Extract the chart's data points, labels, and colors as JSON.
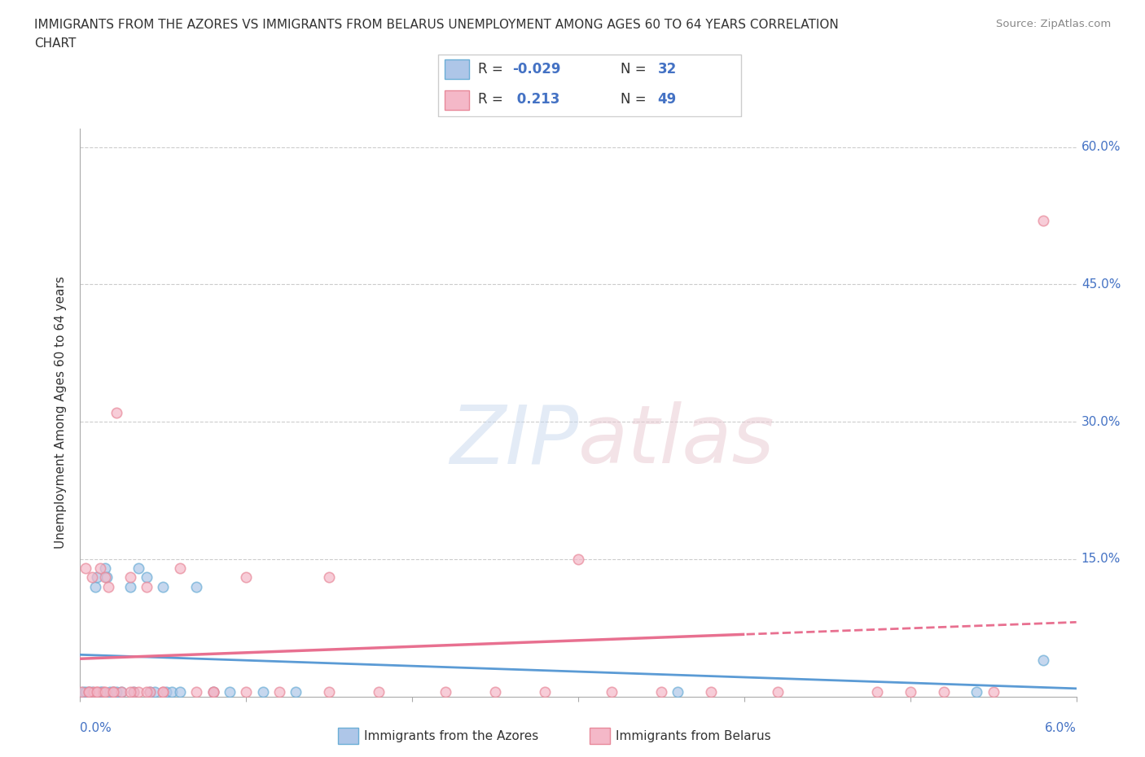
{
  "title_line1": "IMMIGRANTS FROM THE AZORES VS IMMIGRANTS FROM BELARUS UNEMPLOYMENT AMONG AGES 60 TO 64 YEARS CORRELATION",
  "title_line2": "CHART",
  "source": "Source: ZipAtlas.com",
  "ylabel": "Unemployment Among Ages 60 to 64 years",
  "legend_label1": "Immigrants from the Azores",
  "legend_label2": "Immigrants from Belarus",
  "r1": -0.029,
  "n1": 32,
  "r2": 0.213,
  "n2": 49,
  "color_azores_fill": "#aec6e8",
  "color_azores_edge": "#6baed6",
  "color_belarus_fill": "#f4b8c8",
  "color_belarus_edge": "#e8899a",
  "color_azores_line": "#5b9bd5",
  "color_belarus_line": "#f4b8c8",
  "color_blue_text": "#4472c4",
  "color_text": "#333333",
  "xlim": [
    0.0,
    0.06
  ],
  "ylim": [
    0.0,
    0.62
  ],
  "yticks": [
    0.0,
    0.15,
    0.3,
    0.45,
    0.6
  ],
  "ytick_labels": [
    "",
    "15.0%",
    "30.0%",
    "45.0%",
    "60.0%"
  ],
  "watermark": "ZIPatlas",
  "azores_x": [
    0.0002,
    0.0003,
    0.0005,
    0.0007,
    0.0009,
    0.001,
    0.0012,
    0.0013,
    0.0015,
    0.0016,
    0.0018,
    0.002,
    0.0022,
    0.0025,
    0.003,
    0.0032,
    0.0035,
    0.004,
    0.0042,
    0.0045,
    0.005,
    0.0052,
    0.0055,
    0.006,
    0.007,
    0.008,
    0.009,
    0.011,
    0.013,
    0.036,
    0.054,
    0.058
  ],
  "azores_y": [
    0.005,
    0.005,
    0.005,
    0.005,
    0.12,
    0.13,
    0.005,
    0.005,
    0.14,
    0.13,
    0.005,
    0.005,
    0.005,
    0.005,
    0.12,
    0.005,
    0.14,
    0.13,
    0.005,
    0.005,
    0.12,
    0.005,
    0.005,
    0.005,
    0.12,
    0.005,
    0.005,
    0.005,
    0.005,
    0.005,
    0.005,
    0.04
  ],
  "belarus_x": [
    0.0001,
    0.0003,
    0.0005,
    0.0007,
    0.0008,
    0.001,
    0.0012,
    0.0014,
    0.0015,
    0.0017,
    0.002,
    0.0022,
    0.0025,
    0.003,
    0.0032,
    0.0035,
    0.004,
    0.0042,
    0.005,
    0.006,
    0.007,
    0.008,
    0.01,
    0.012,
    0.015,
    0.018,
    0.022,
    0.025,
    0.028,
    0.03,
    0.032,
    0.035,
    0.038,
    0.042,
    0.048,
    0.05,
    0.052,
    0.055,
    0.058,
    0.0005,
    0.001,
    0.0015,
    0.002,
    0.003,
    0.004,
    0.005,
    0.008,
    0.01,
    0.015
  ],
  "belarus_y": [
    0.005,
    0.14,
    0.005,
    0.13,
    0.005,
    0.005,
    0.14,
    0.005,
    0.13,
    0.12,
    0.005,
    0.31,
    0.005,
    0.13,
    0.005,
    0.005,
    0.12,
    0.005,
    0.005,
    0.14,
    0.005,
    0.005,
    0.13,
    0.005,
    0.13,
    0.005,
    0.005,
    0.005,
    0.005,
    0.15,
    0.005,
    0.005,
    0.005,
    0.005,
    0.005,
    0.005,
    0.005,
    0.005,
    0.52,
    0.005,
    0.005,
    0.005,
    0.005,
    0.005,
    0.005,
    0.005,
    0.005,
    0.005,
    0.005
  ]
}
